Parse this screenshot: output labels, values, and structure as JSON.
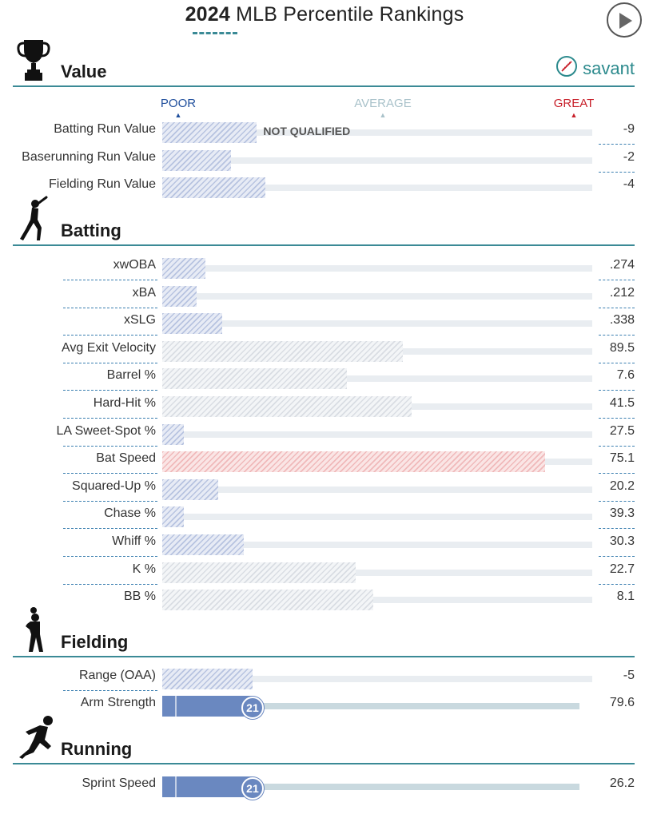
{
  "title": {
    "year": "2024",
    "text": "MLB Percentile Rankings"
  },
  "brand": {
    "label": "savant"
  },
  "scale": {
    "poor": "POOR",
    "average": "AVERAGE",
    "great": "GREAT"
  },
  "colors": {
    "accent": "#3b8a96",
    "poor": "#1f4e9c",
    "average": "#a9c2ca",
    "great": "#c8202a",
    "bar_blue_light": "#b7c3e0",
    "bar_gray_light": "#d9dde3",
    "bar_red_light": "#f0b9ba",
    "bar_solid_blue": "#6a88c0"
  },
  "sections": [
    {
      "id": "value",
      "title": "Value",
      "icon": "trophy-icon"
    },
    {
      "id": "batting",
      "title": "Batting",
      "icon": "batter-icon"
    },
    {
      "id": "fielding",
      "title": "Fielding",
      "icon": "fielder-icon"
    },
    {
      "id": "running",
      "title": "Running",
      "icon": "runner-icon"
    }
  ],
  "chart_data": {
    "type": "bar",
    "title": "2024 MLB Percentile Rankings",
    "xlabel": "",
    "ylabel": "",
    "xlim": [
      0,
      100
    ],
    "scale_labels": [
      "POOR",
      "AVERAGE",
      "GREAT"
    ],
    "rows": [
      {
        "section": "Value",
        "metric": "Batting Run Value",
        "value": "-9",
        "percentile": 22,
        "shown_percentile": null,
        "note": "NOT QUALIFIED",
        "style": "hatched-blue"
      },
      {
        "section": "Value",
        "metric": "Baserunning Run Value",
        "value": "-2",
        "percentile": 16,
        "shown_percentile": null,
        "note": "",
        "style": "hatched-blue"
      },
      {
        "section": "Value",
        "metric": "Fielding Run Value",
        "value": "-4",
        "percentile": 24,
        "shown_percentile": null,
        "note": "",
        "style": "hatched-blue"
      },
      {
        "section": "Batting",
        "metric": "xwOBA",
        "value": ".274",
        "percentile": 10,
        "shown_percentile": null,
        "note": "",
        "style": "hatched-blue"
      },
      {
        "section": "Batting",
        "metric": "xBA",
        "value": ".212",
        "percentile": 8,
        "shown_percentile": null,
        "note": "",
        "style": "hatched-blue"
      },
      {
        "section": "Batting",
        "metric": "xSLG",
        "value": ".338",
        "percentile": 14,
        "shown_percentile": null,
        "note": "",
        "style": "hatched-blue"
      },
      {
        "section": "Batting",
        "metric": "Avg Exit Velocity",
        "value": "89.5",
        "percentile": 56,
        "shown_percentile": null,
        "note": "",
        "style": "hatched-gray"
      },
      {
        "section": "Batting",
        "metric": "Barrel %",
        "value": "7.6",
        "percentile": 43,
        "shown_percentile": null,
        "note": "",
        "style": "hatched-gray"
      },
      {
        "section": "Batting",
        "metric": "Hard-Hit %",
        "value": "41.5",
        "percentile": 58,
        "shown_percentile": null,
        "note": "",
        "style": "hatched-gray"
      },
      {
        "section": "Batting",
        "metric": "LA Sweet-Spot %",
        "value": "27.5",
        "percentile": 5,
        "shown_percentile": null,
        "note": "",
        "style": "hatched-blue"
      },
      {
        "section": "Batting",
        "metric": "Bat Speed",
        "value": "75.1",
        "percentile": 89,
        "shown_percentile": null,
        "note": "",
        "style": "hatched-red"
      },
      {
        "section": "Batting",
        "metric": "Squared-Up %",
        "value": "20.2",
        "percentile": 13,
        "shown_percentile": null,
        "note": "",
        "style": "hatched-blue"
      },
      {
        "section": "Batting",
        "metric": "Chase %",
        "value": "39.3",
        "percentile": 5,
        "shown_percentile": null,
        "note": "",
        "style": "hatched-blue"
      },
      {
        "section": "Batting",
        "metric": "Whiff %",
        "value": "30.3",
        "percentile": 19,
        "shown_percentile": null,
        "note": "",
        "style": "hatched-blue"
      },
      {
        "section": "Batting",
        "metric": "K %",
        "value": "22.7",
        "percentile": 45,
        "shown_percentile": null,
        "note": "",
        "style": "hatched-gray"
      },
      {
        "section": "Batting",
        "metric": "BB %",
        "value": "8.1",
        "percentile": 49,
        "shown_percentile": null,
        "note": "",
        "style": "hatched-gray"
      },
      {
        "section": "Fielding",
        "metric": "Range (OAA)",
        "value": "-5",
        "percentile": 21,
        "shown_percentile": null,
        "note": "",
        "style": "hatched-blue"
      },
      {
        "section": "Fielding",
        "metric": "Arm Strength",
        "value": "79.6",
        "percentile": 21,
        "shown_percentile": "21",
        "note": "",
        "style": "solid"
      },
      {
        "section": "Running",
        "metric": "Sprint Speed",
        "value": "26.2",
        "percentile": 21,
        "shown_percentile": "21",
        "note": "",
        "style": "solid"
      }
    ]
  }
}
